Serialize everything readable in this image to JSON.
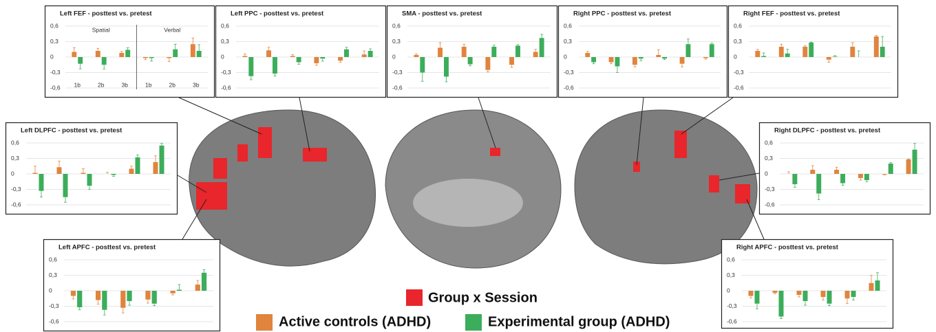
{
  "chart_data": [
    {
      "type": "bar",
      "title": "Left FEF - posttest vs. pretest",
      "categories": [
        "1b",
        "2b",
        "3b",
        "1b",
        "2b",
        "3b"
      ],
      "group_labels": [
        "Spatial",
        "Verbal"
      ],
      "series": [
        {
          "name": "Active controls (ADHD)",
          "color": "#e0843e",
          "values": [
            0.1,
            0.12,
            0.08,
            -0.02,
            -0.02,
            0.25
          ],
          "errors": [
            0.08,
            0.05,
            0.03,
            0.03,
            0.07,
            0.12
          ]
        },
        {
          "name": "Experimental group (ADHD)",
          "color": "#3cad5a",
          "values": [
            -0.13,
            -0.15,
            0.14,
            -0.02,
            0.15,
            0.12
          ],
          "errors": [
            0.1,
            0.08,
            0.04,
            0.06,
            0.1,
            0.12
          ]
        }
      ],
      "ylim": [
        -0.6,
        0.6
      ],
      "yticks": [
        {
          "value": 0.6,
          "label": "0,6"
        },
        {
          "value": 0.3,
          "label": "0,3"
        },
        0,
        {
          "value": -0.3,
          "label": "-0,3"
        },
        {
          "value": -0.6,
          "label": "-0,6"
        }
      ],
      "grid": true
    },
    {
      "type": "bar",
      "title": "Left PPC - posttest vs. pretest",
      "categories": [
        null,
        null,
        null,
        null,
        null,
        null
      ],
      "series": [
        {
          "name": "Active controls (ADHD)",
          "color": "#e0843e",
          "values": [
            0.02,
            0.13,
            0.02,
            -0.12,
            -0.07,
            0.05
          ],
          "errors": [
            0.04,
            0.06,
            0.03,
            0.04,
            0.03,
            0.07
          ]
        },
        {
          "name": "Experimental group (ADHD)",
          "color": "#3cad5a",
          "values": [
            -0.37,
            -0.32,
            -0.1,
            -0.03,
            0.15,
            0.12
          ],
          "errors": [
            0.07,
            0.05,
            0.04,
            0.05,
            0.04,
            0.04
          ]
        }
      ],
      "ylim": [
        -0.6,
        0.6
      ],
      "yticks": [
        {
          "value": 0.6,
          "label": "0,6"
        },
        {
          "value": 0.3,
          "label": "0,3"
        },
        0,
        {
          "value": -0.3,
          "label": "-0,3"
        },
        {
          "value": -0.6,
          "label": "-0,6"
        }
      ],
      "grid": true
    },
    {
      "type": "bar",
      "title": "SMA - posttest vs. pretest",
      "categories": [
        null,
        null,
        null,
        null,
        null,
        null
      ],
      "series": [
        {
          "name": "Active controls (ADHD)",
          "color": "#e0843e",
          "values": [
            0.04,
            0.18,
            0.2,
            -0.25,
            -0.15,
            0.1
          ],
          "errors": [
            0.02,
            0.1,
            0.05,
            0.04,
            0.05,
            0.05
          ]
        },
        {
          "name": "Experimental group (ADHD)",
          "color": "#3cad5a",
          "values": [
            -0.3,
            -0.38,
            -0.14,
            0.2,
            0.22,
            0.37
          ],
          "errors": [
            0.17,
            0.1,
            0.03,
            0.03,
            0.02,
            0.07
          ]
        }
      ],
      "ylim": [
        -0.6,
        0.6
      ],
      "yticks": [
        {
          "value": 0.6,
          "label": "0,6"
        },
        {
          "value": 0.3,
          "label": "0,3"
        },
        0,
        {
          "value": -0.3,
          "label": "-0,3"
        },
        {
          "value": -0.6,
          "label": "-0,6"
        }
      ],
      "grid": true
    },
    {
      "type": "bar",
      "title": "Right PPC - posttest vs. pretest",
      "categories": [
        null,
        null,
        null,
        null,
        null,
        null
      ],
      "series": [
        {
          "name": "Active controls (ADHD)",
          "color": "#e0843e",
          "values": [
            0.08,
            -0.1,
            -0.15,
            0.04,
            -0.13,
            -0.02
          ],
          "errors": [
            0.03,
            0.03,
            0.04,
            0.1,
            0.06,
            0.02
          ]
        },
        {
          "name": "Experimental group (ADHD)",
          "color": "#3cad5a",
          "values": [
            -0.1,
            -0.18,
            -0.03,
            -0.03,
            0.25,
            0.25
          ],
          "errors": [
            0.03,
            0.12,
            0.04,
            0.02,
            0.1,
            0.02
          ]
        }
      ],
      "ylim": [
        -0.6,
        0.6
      ],
      "yticks": [
        {
          "value": 0.6,
          "label": "0,6"
        },
        {
          "value": 0.3,
          "label": "0,3"
        },
        0,
        {
          "value": -0.3,
          "label": "-0,3"
        },
        {
          "value": -0.6,
          "label": "-0,6"
        }
      ],
      "grid": true
    },
    {
      "type": "bar",
      "title": "Right FEF - posttest vs. pretest",
      "categories": [
        null,
        null,
        null,
        null,
        null,
        null
      ],
      "series": [
        {
          "name": "Active controls (ADHD)",
          "color": "#e0843e",
          "values": [
            0.12,
            0.2,
            0.2,
            -0.05,
            0.2,
            0.4
          ],
          "errors": [
            0.03,
            0.05,
            0.02,
            0.05,
            0.08,
            0.02
          ]
        },
        {
          "name": "Experimental group (ADHD)",
          "color": "#3cad5a",
          "values": [
            0.02,
            0.07,
            0.28,
            0.01,
            0.0,
            0.2
          ],
          "errors": [
            0.06,
            0.08,
            0.01,
            0.02,
            0.12,
            0.2
          ]
        }
      ],
      "ylim": [
        -0.6,
        0.6
      ],
      "yticks": [
        {
          "value": 0.6,
          "label": "0,6"
        },
        {
          "value": 0.3,
          "label": "0,3"
        },
        0,
        {
          "value": -0.3,
          "label": "-0,3"
        },
        {
          "value": -0.6,
          "label": "-0,6"
        }
      ],
      "grid": true
    },
    {
      "type": "bar",
      "title": "Left DLPFC - posttest vs. pretest",
      "categories": [
        null,
        null,
        null,
        null,
        null,
        null
      ],
      "series": [
        {
          "name": "Active controls (ADHD)",
          "color": "#e0843e",
          "values": [
            0.02,
            0.13,
            0.02,
            0.0,
            0.1,
            0.23
          ],
          "errors": [
            0.13,
            0.12,
            0.08,
            0.03,
            0.05,
            0.12
          ]
        },
        {
          "name": "Experimental group (ADHD)",
          "color": "#3cad5a",
          "values": [
            -0.33,
            -0.45,
            -0.23,
            -0.02,
            0.32,
            0.55
          ],
          "errors": [
            0.12,
            0.1,
            0.07,
            0.03,
            0.05,
            0.04
          ]
        }
      ],
      "ylim": [
        -0.6,
        0.6
      ],
      "yticks": [
        {
          "value": 0.6,
          "label": "0,6"
        },
        {
          "value": 0.3,
          "label": "0,3"
        },
        0,
        {
          "value": -0.3,
          "label": "-0,3"
        },
        {
          "value": -0.6,
          "label": "-0,6"
        }
      ],
      "grid": true
    },
    {
      "type": "bar",
      "title": "Right DLPFC - posttest vs. pretest",
      "categories": [
        null,
        null,
        null,
        null,
        null,
        null
      ],
      "series": [
        {
          "name": "Active controls (ADHD)",
          "color": "#e0843e",
          "values": [
            0.0,
            0.08,
            0.08,
            -0.08,
            -0.01,
            0.28
          ],
          "errors": [
            0.04,
            0.08,
            0.05,
            0.04,
            0.01,
            0.01
          ]
        },
        {
          "name": "Experimental group (ADHD)",
          "color": "#3cad5a",
          "values": [
            -0.2,
            -0.38,
            -0.18,
            -0.12,
            0.2,
            0.47
          ],
          "errors": [
            0.06,
            0.12,
            0.04,
            0.03,
            0.02,
            0.12
          ]
        }
      ],
      "ylim": [
        -0.6,
        0.6
      ],
      "yticks": [
        {
          "value": 0.6,
          "label": "0,6"
        },
        {
          "value": 0.3,
          "label": "0,3"
        },
        0,
        {
          "value": -0.3,
          "label": "-0,3"
        },
        {
          "value": -0.6,
          "label": "-0,6"
        }
      ],
      "grid": true
    },
    {
      "type": "bar",
      "title": "Left APFC - posttest vs. pretest",
      "categories": [
        null,
        null,
        null,
        null,
        null,
        null
      ],
      "series": [
        {
          "name": "Active controls (ADHD)",
          "color": "#e0843e",
          "values": [
            -0.1,
            -0.18,
            -0.33,
            -0.17,
            -0.05,
            0.12
          ],
          "errors": [
            0.06,
            0.08,
            0.1,
            0.07,
            0.03,
            0.08
          ]
        },
        {
          "name": "Experimental group (ADHD)",
          "color": "#3cad5a",
          "values": [
            -0.32,
            -0.37,
            -0.2,
            -0.25,
            0.02,
            0.35
          ],
          "errors": [
            0.05,
            0.1,
            0.08,
            0.04,
            0.1,
            0.06
          ]
        }
      ],
      "ylim": [
        -0.6,
        0.6
      ],
      "yticks": [
        {
          "value": 0.6,
          "label": "0,6"
        },
        {
          "value": 0.3,
          "label": "0,3"
        },
        0,
        {
          "value": -0.3,
          "label": "-0,3"
        },
        {
          "value": -0.6,
          "label": "-0,6"
        }
      ],
      "grid": true
    },
    {
      "type": "bar",
      "title": "Right APFC - posttest vs. pretest",
      "categories": [
        null,
        null,
        null,
        null,
        null,
        null
      ],
      "series": [
        {
          "name": "Active controls (ADHD)",
          "color": "#e0843e",
          "values": [
            -0.1,
            -0.04,
            -0.08,
            -0.12,
            -0.15,
            0.15
          ],
          "errors": [
            0.04,
            0.02,
            0.04,
            0.06,
            0.1,
            0.15
          ]
        },
        {
          "name": "Experimental group (ADHD)",
          "color": "#3cad5a",
          "values": [
            -0.25,
            -0.5,
            -0.2,
            -0.25,
            -0.12,
            0.2
          ],
          "errors": [
            0.1,
            0.04,
            0.08,
            0.04,
            0.06,
            0.15
          ]
        }
      ],
      "ylim": [
        -0.6,
        0.6
      ],
      "yticks": [
        {
          "value": 0.6,
          "label": "0,6"
        },
        {
          "value": 0.3,
          "label": "0,3"
        },
        0,
        {
          "value": -0.3,
          "label": "-0,3"
        },
        {
          "value": -0.6,
          "label": "-0,6"
        }
      ],
      "grid": true
    }
  ],
  "overlay_legend": {
    "label": "Group x Session",
    "color": "#e8262b"
  }
}
